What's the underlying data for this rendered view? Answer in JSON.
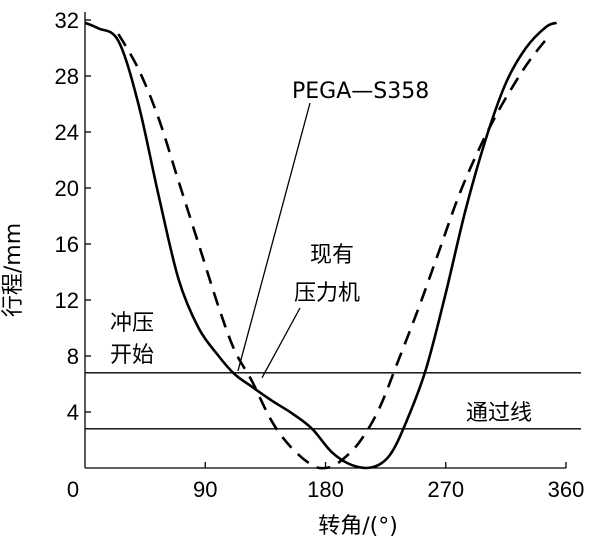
{
  "chart_data": {
    "type": "line",
    "xlabel": "转角/(°)",
    "ylabel": "行程/mm",
    "xlim": [
      0,
      360
    ],
    "ylim": [
      0,
      32
    ],
    "x_ticks": [
      "0",
      "90",
      "180",
      "270",
      "360"
    ],
    "y_ticks": [
      "4",
      "8",
      "12",
      "16",
      "20",
      "24",
      "28",
      "32"
    ],
    "grid": false,
    "series": [
      {
        "name": "现有压力机",
        "style": "solid",
        "x": [
          0,
          10,
          25,
          40,
          55,
          70,
          85,
          100,
          112,
          125,
          140,
          155,
          170,
          185,
          200,
          215,
          228,
          240,
          255,
          270,
          285,
          300,
          315,
          330,
          345,
          353
        ],
        "y": [
          31.8,
          31.4,
          30.5,
          26,
          19.5,
          13.5,
          10,
          8,
          6.7,
          5.8,
          4.8,
          3.9,
          2.8,
          1.1,
          0.2,
          0.05,
          0.9,
          3.2,
          7,
          12.5,
          18.5,
          23.5,
          27.5,
          30,
          31.5,
          31.8
        ]
      },
      {
        "name": "PEGA—S358",
        "style": "dashed",
        "x": [
          25,
          40,
          55,
          70,
          85,
          100,
          112,
          125,
          140,
          155,
          170,
          180,
          190,
          205,
          220,
          235,
          250,
          265,
          280,
          295,
          310,
          325,
          335,
          345
        ],
        "y": [
          31,
          28.5,
          25,
          20.5,
          16,
          11.5,
          8.4,
          6.2,
          3.3,
          1.4,
          0.2,
          0,
          0.4,
          1.8,
          4.2,
          7.8,
          11.5,
          15.5,
          19.5,
          22.8,
          25.6,
          28,
          29.4,
          30.6
        ]
      }
    ],
    "reference_lines": [
      {
        "y": 6.8,
        "label": "冲压开始"
      },
      {
        "y": 2.8,
        "label": "通过线"
      }
    ],
    "annotations": [
      {
        "text": "PEGA—S358"
      },
      {
        "text": "现有"
      },
      {
        "text": "压力机"
      },
      {
        "text": "冲压"
      },
      {
        "text": "开始"
      },
      {
        "text": "通过线"
      }
    ]
  }
}
